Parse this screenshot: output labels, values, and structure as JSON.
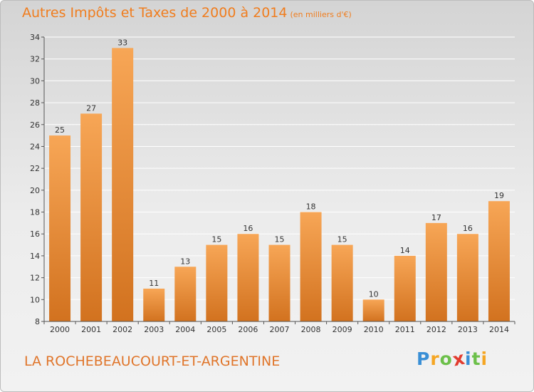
{
  "header": {
    "title": "Autres Impôts et Taxes de 2000 à 2014",
    "unit": "(en milliers d'€)"
  },
  "footer": {
    "place": "LA ROCHEBEAUCOURT-ET-ARGENTINE",
    "logo_letters": [
      "P",
      "r",
      "o",
      "x",
      "i",
      "t",
      "i"
    ],
    "logo_colors": [
      "#3a8fd6",
      "#f5a623",
      "#6cc04a",
      "#e23b2e",
      "#3a8fd6",
      "#6cc04a",
      "#f5a623"
    ]
  },
  "colors": {
    "bar_light": "#f7a656",
    "bar_dark": "#d2721f",
    "axis": "#555555",
    "grid": "#ffffff"
  },
  "chart_data": {
    "type": "bar",
    "title": "Autres Impôts et Taxes de 2000 à 2014",
    "ylim": [
      8,
      34
    ],
    "yticks": [
      8,
      10,
      12,
      14,
      16,
      18,
      20,
      22,
      24,
      26,
      28,
      30,
      32,
      34
    ],
    "grid": true,
    "categories": [
      "2000",
      "2001",
      "2002",
      "2003",
      "2004",
      "2005",
      "2006",
      "2007",
      "2008",
      "2009",
      "2010",
      "2011",
      "2012",
      "2013",
      "2014"
    ],
    "values": [
      25,
      27,
      33,
      11,
      13,
      15,
      16,
      15,
      18,
      15,
      10,
      14,
      17,
      16,
      19
    ]
  }
}
